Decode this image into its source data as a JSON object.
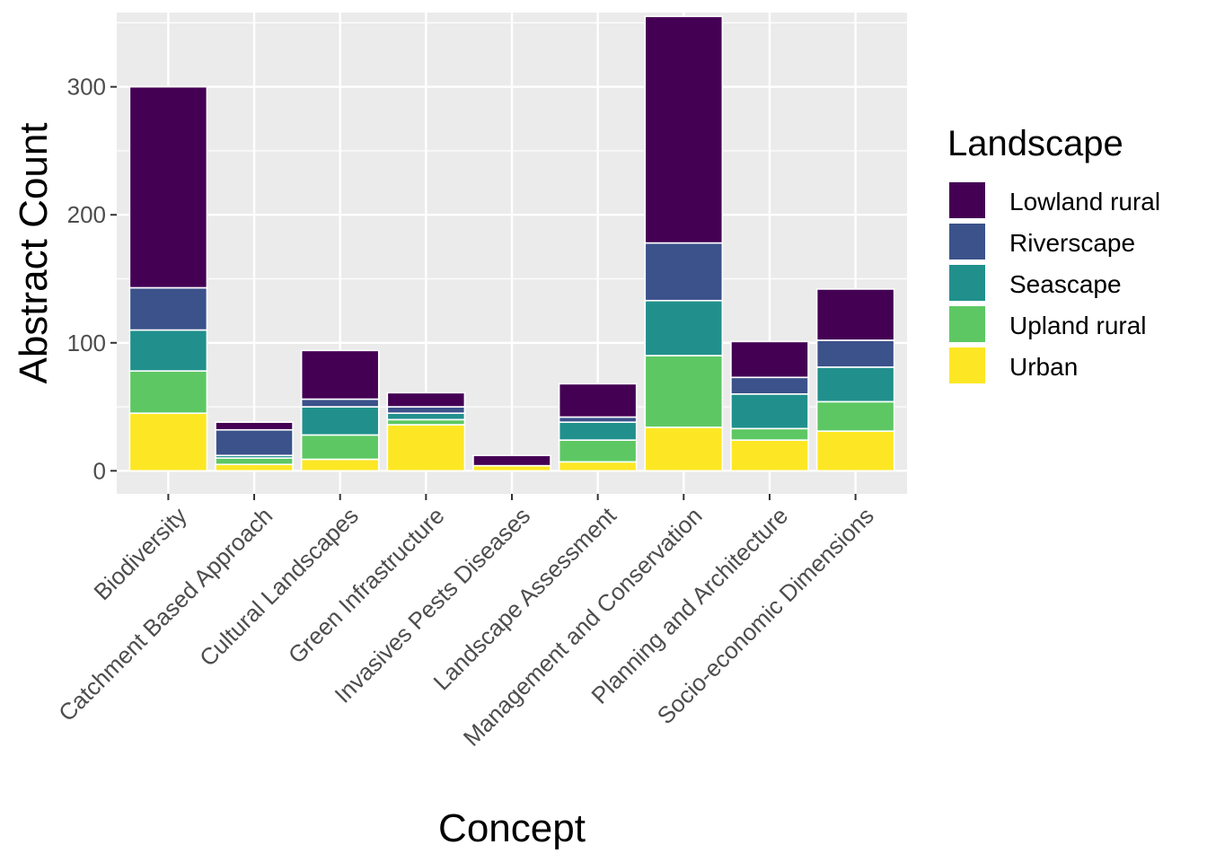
{
  "chart_data": {
    "type": "bar",
    "stacked": true,
    "xlabel": "Concept",
    "ylabel": "Abstract Count",
    "ylim": [
      -18,
      358
    ],
    "yticks": [
      0,
      100,
      200,
      300
    ],
    "grid": true,
    "legend_position": "right",
    "categories": [
      "Biodiversity",
      "Catchment Based Approach",
      "Cultural Landscapes",
      "Green Infrastructure",
      "Invasives Pests Diseases",
      "Landscape Assessment",
      "Management and Conservation",
      "Planning and Architecture",
      "Socio-economic Dimensions"
    ],
    "legend_title": "Landscape",
    "series": [
      {
        "name": "Lowland rural",
        "color": "#440154",
        "values": [
          157,
          6,
          38,
          11,
          8,
          26,
          177,
          28,
          40
        ]
      },
      {
        "name": "Riverscape",
        "color": "#3B528B",
        "values": [
          33,
          20,
          6,
          5,
          0,
          4,
          45,
          13,
          21
        ]
      },
      {
        "name": "Seascape",
        "color": "#21908C",
        "values": [
          32,
          2,
          22,
          5,
          0,
          14,
          43,
          27,
          27
        ]
      },
      {
        "name": "Upland rural",
        "color": "#5DC863",
        "values": [
          33,
          5,
          19,
          4,
          0,
          17,
          56,
          9,
          23
        ]
      },
      {
        "name": "Urban",
        "color": "#FDE725",
        "values": [
          45,
          5,
          9,
          36,
          4,
          7,
          34,
          24,
          31
        ]
      }
    ]
  }
}
